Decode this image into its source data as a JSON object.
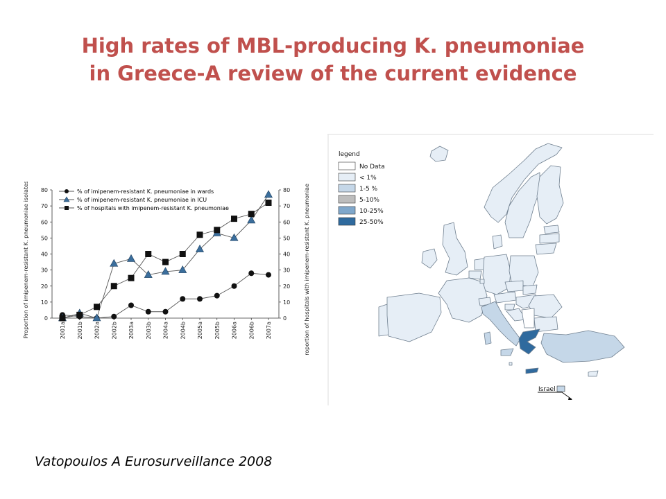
{
  "slide": {
    "title_line1": "High rates of MBL-producing K. pneumoniae",
    "title_line2": "in Greece-A review of the current evidence",
    "citation": "Vatopoulos A  Eurosurveillance 2008"
  },
  "chart_data": {
    "type": "line",
    "categories": [
      "2001a",
      "2001b",
      "2002a",
      "2002b",
      "2003a",
      "2003b",
      "2004a",
      "2004b",
      "2005a",
      "2005b",
      "2006a",
      "2006b",
      "2007a"
    ],
    "ylim": [
      0,
      80
    ],
    "yticks": [
      0,
      10,
      20,
      30,
      40,
      50,
      60,
      70,
      80
    ],
    "ylabel": "Proportion of imipenem-resistant K. pneumoniae isolates (%)",
    "y2label": "Proportion of hospitals with imipenem-resistant K. pneumoniae isolates (%)",
    "legend_position": "top-left",
    "grid": false,
    "series": [
      {
        "name": "% of imipenem-resistant K. pneumoniae in wards",
        "marker": "circle",
        "color": "#111111",
        "values": [
          2,
          1,
          0,
          1,
          8,
          4,
          4,
          12,
          12,
          14,
          20,
          28,
          27
        ]
      },
      {
        "name": "% of imipenem-resistant K. pneumoniae in ICU",
        "marker": "triangle",
        "color": "#3b6e9c",
        "values": [
          0,
          3,
          0,
          34,
          37,
          27,
          29,
          30,
          43,
          53,
          50,
          61,
          77
        ]
      },
      {
        "name": "% of hospitals with imipenem-resistant K. pneumoniae",
        "marker": "square",
        "color": "#111111",
        "values": [
          0,
          2,
          7,
          20,
          25,
          40,
          35,
          40,
          52,
          55,
          62,
          65,
          72
        ]
      }
    ]
  },
  "map": {
    "legend_title": "legend",
    "legend": [
      {
        "label": "No Data",
        "color": "#ffffff"
      },
      {
        "label": "< 1%",
        "color": "#e6eef6"
      },
      {
        "label": "1-5 %",
        "color": "#c5d7e8"
      },
      {
        "label": "5-10%",
        "color": "#bdbdbd"
      },
      {
        "label": "10-25%",
        "color": "#7fa7cb"
      },
      {
        "label": "25-50%",
        "color": "#2f6a9e"
      }
    ],
    "israel_label": "Israel",
    "colors": {
      "low": "#e6eef6",
      "mid": "#c5d7e8",
      "high": "#7fa7cb",
      "top": "#2f6a9e",
      "border": "#6f7f8f"
    }
  }
}
